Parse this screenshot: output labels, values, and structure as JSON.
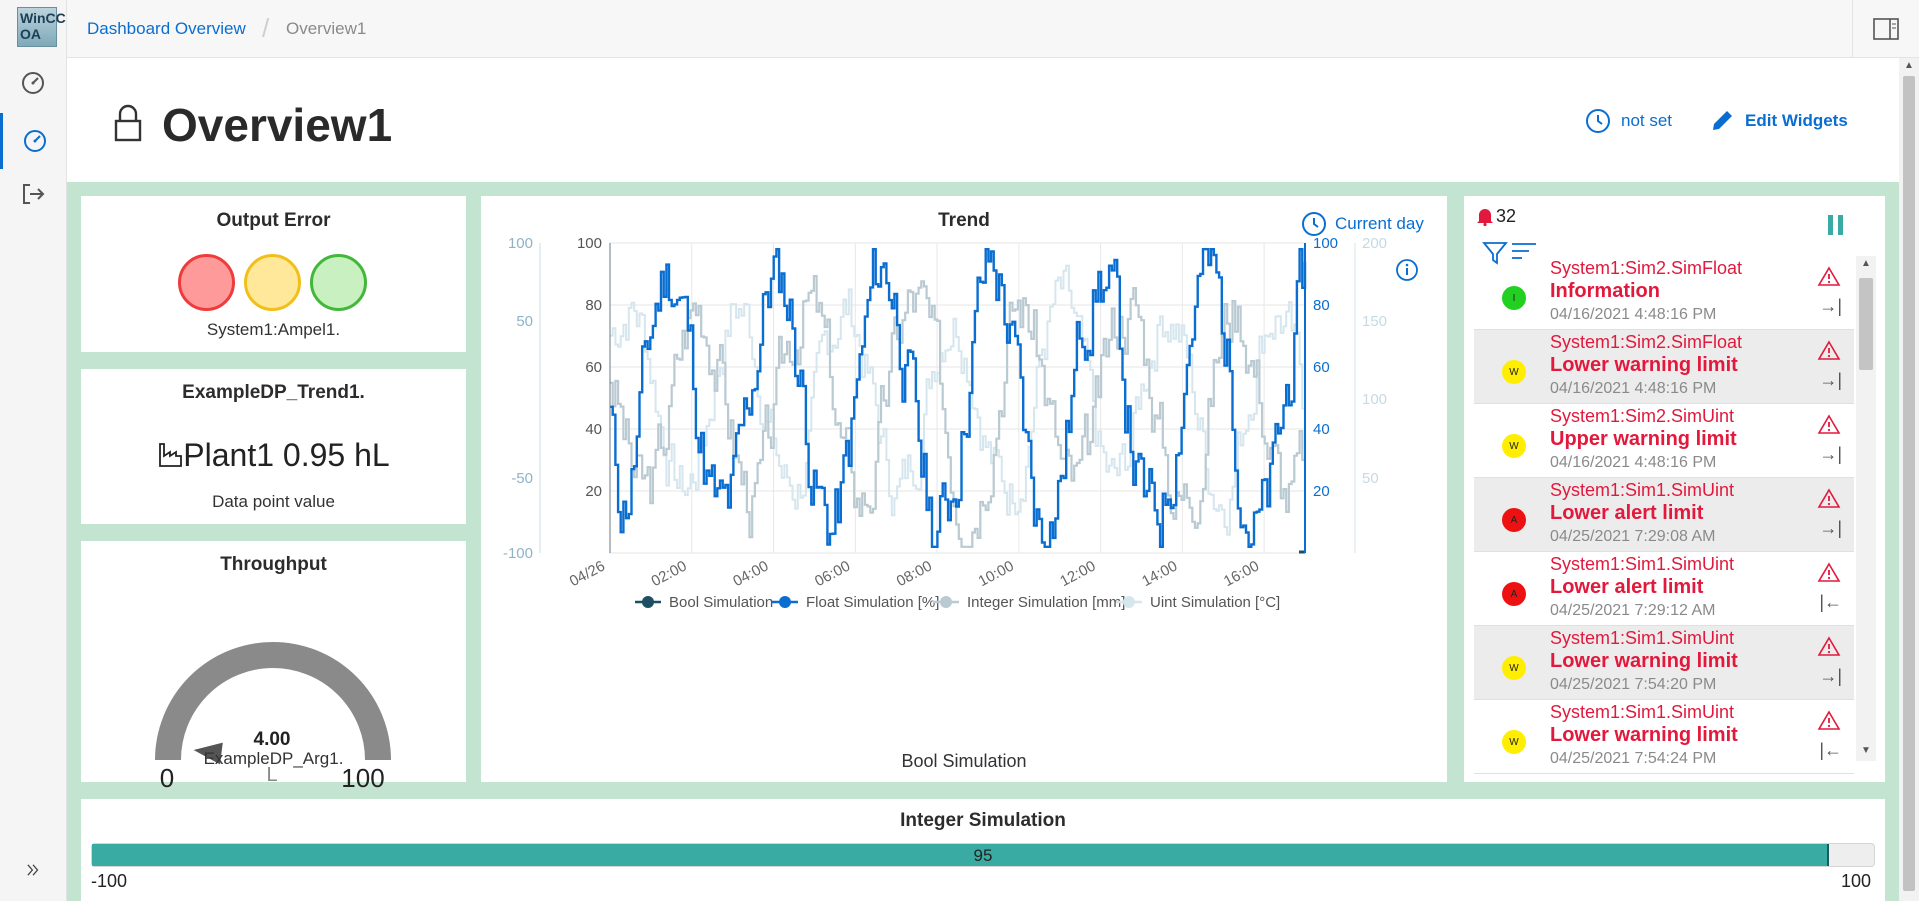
{
  "sidebar": {
    "logo_text": "WinCC OA",
    "items": [
      "dashboard-gauge-icon",
      "dashboard-active-icon",
      "logout-icon"
    ],
    "expand_icon": "double-chevron-right-icon"
  },
  "breadcrumb": {
    "root": "Dashboard Overview",
    "current": "Overview1"
  },
  "header": {
    "title": "Overview1",
    "time_label": "not set",
    "edit_label": "Edit Widgets"
  },
  "widgets": {
    "output_error": {
      "title": "Output Error",
      "label": "System1:Ampel1.",
      "lights": [
        "#ff9a9a",
        "#ffe89a",
        "#c8f0c0"
      ]
    },
    "trend1": {
      "title": "ExampleDP_Trend1.",
      "value": "Plant1 0.95 hL",
      "label": "Data point value"
    },
    "throughput": {
      "title": "Throughput",
      "value": "4.00",
      "min": "0",
      "max": "100",
      "unit": "L",
      "label": "ExampleDP_Arg1.",
      "needle_value": 4
    },
    "trend": {
      "title": "Trend",
      "range_label": "Current day",
      "xlabel": "Bool Simulation",
      "x_ticks": [
        "04/26",
        "02:00",
        "04:00",
        "06:00",
        "08:00",
        "10:00",
        "12:00",
        "14:00",
        "16:00"
      ],
      "left_outer_ticks": [
        "100",
        "50",
        "-50",
        "-100"
      ],
      "left_inner_ticks": [
        "100",
        "80",
        "60",
        "40",
        "20"
      ],
      "right_inner_ticks": [
        "100",
        "80",
        "60",
        "40",
        "20"
      ],
      "right_outer_ticks": [
        "200",
        "150",
        "100",
        "50"
      ],
      "legend": [
        "Bool Simulation",
        "Float Simulation [%]",
        "Integer Simulation [mm]",
        "Uint Simulation [°C]"
      ],
      "colors": {
        "bool": "#1d4f63",
        "float": "#0a6ed1",
        "integer": "#b9cad3",
        "uint": "#d6e6ee"
      }
    },
    "alarms": {
      "count": "32",
      "rows": [
        {
          "dp": "System1:Sim2.SimFloat",
          "text": "Information",
          "time": "04/16/2021 4:48:16 PM",
          "badge": "I",
          "badge_color": "#22d022",
          "arrow": "→|",
          "shaded": false
        },
        {
          "dp": "System1:Sim2.SimFloat",
          "text": "Lower warning limit",
          "time": "04/16/2021 4:48:16 PM",
          "badge": "W",
          "badge_color": "#ffee00",
          "arrow": "→|",
          "shaded": true
        },
        {
          "dp": "System1:Sim2.SimUint",
          "text": "Upper warning limit",
          "time": "04/16/2021 4:48:16 PM",
          "badge": "W",
          "badge_color": "#ffee00",
          "arrow": "→|",
          "shaded": false
        },
        {
          "dp": "System1:Sim1.SimUint",
          "text": "Lower alert limit",
          "time": "04/25/2021 7:29:08 AM",
          "badge": "A",
          "badge_color": "#ee1111",
          "arrow": "→|",
          "shaded": true
        },
        {
          "dp": "System1:Sim1.SimUint",
          "text": "Lower alert limit",
          "time": "04/25/2021 7:29:12 AM",
          "badge": "A",
          "badge_color": "#ee1111",
          "arrow": "|←",
          "shaded": false
        },
        {
          "dp": "System1:Sim1.SimUint",
          "text": "Lower warning limit",
          "time": "04/25/2021 7:54:20 PM",
          "badge": "W",
          "badge_color": "#ffee00",
          "arrow": "→|",
          "shaded": true
        },
        {
          "dp": "System1:Sim1.SimUint",
          "text": "Lower warning limit",
          "time": "04/25/2021 7:54:24 PM",
          "badge": "W",
          "badge_color": "#ffee00",
          "arrow": "|←",
          "shaded": false
        }
      ]
    },
    "integer_sim": {
      "title": "Integer Simulation",
      "value": "95",
      "min": "-100",
      "max": "100",
      "progress_value": 95,
      "bar_color": "#3aaba2"
    }
  }
}
